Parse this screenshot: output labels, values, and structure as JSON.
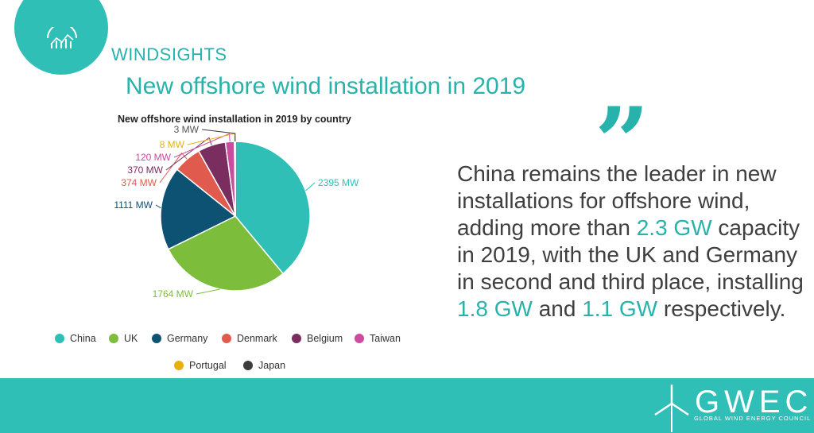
{
  "header": {
    "brand": "WINDSIGHTS",
    "title": "New offshore wind installation in 2019"
  },
  "chart_data": {
    "type": "pie",
    "title": "New offshore wind installation in 2019  by country",
    "categories": [
      "China",
      "UK",
      "Germany",
      "Denmark",
      "Belgium",
      "Taiwan",
      "Portugal",
      "Japan"
    ],
    "values": [
      2395,
      1764,
      1111,
      374,
      370,
      120,
      8,
      3
    ],
    "data_labels": [
      "2395 MW",
      "1764 MW",
      "1111 MW",
      "374 MW",
      "370 MW",
      "120 MW",
      "8 MW",
      "3 MW"
    ],
    "colors": [
      "#2fbfb6",
      "#7cbd3c",
      "#0d5272",
      "#e05a4e",
      "#7a2e5f",
      "#cc4aa0",
      "#e8b011",
      "#3c3c3c"
    ],
    "legend_position": "bottom"
  },
  "quote": {
    "part1": "China remains the leader in new installations for offshore wind, adding more than ",
    "hl1": "2.3 GW",
    "part2": " capacity in 2019, with the UK and Germany in second and third place, installing ",
    "hl2": "1.8 GW",
    "part3": " and ",
    "hl3": "1.1 GW",
    "part4": " respectively."
  },
  "footer": {
    "logo_text": "GWEC",
    "logo_subtext": "GLOBAL WIND ENERGY COUNCIL",
    "icon": "wind-turbine-icon"
  }
}
